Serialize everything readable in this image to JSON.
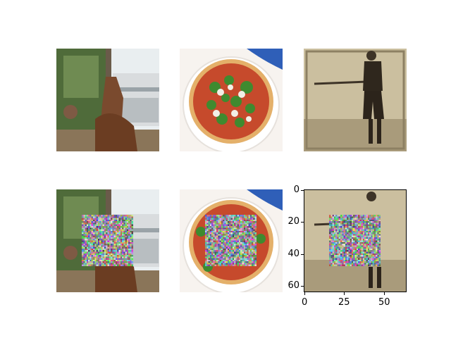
{
  "figure": {
    "images": [
      {
        "subject": "giraffe-and-building",
        "masked": false
      },
      {
        "subject": "pizza",
        "masked": false
      },
      {
        "subject": "vintage-baseball-player",
        "masked": false
      },
      {
        "subject": "giraffe-and-building",
        "masked": true
      },
      {
        "subject": "pizza",
        "masked": true
      },
      {
        "subject": "vintage-baseball-player",
        "masked": true
      }
    ],
    "axes_panel": {
      "x_ticks": [
        "0",
        "25",
        "50"
      ],
      "y_ticks": [
        "0",
        "20",
        "40",
        "60"
      ],
      "x_tick_values": [
        0,
        25,
        50
      ],
      "y_tick_values": [
        0,
        20,
        40,
        60
      ],
      "image_size": [
        64,
        64
      ],
      "patch_region": {
        "x": [
          16,
          48
        ],
        "y": [
          16,
          48
        ]
      }
    },
    "colors": {
      "frame": "#000000",
      "sepia": "#c4b79a",
      "pizza_sauce": "#c64a2c",
      "pizza_basil": "#3f8a2f",
      "sky": "#f4f4f4"
    }
  }
}
